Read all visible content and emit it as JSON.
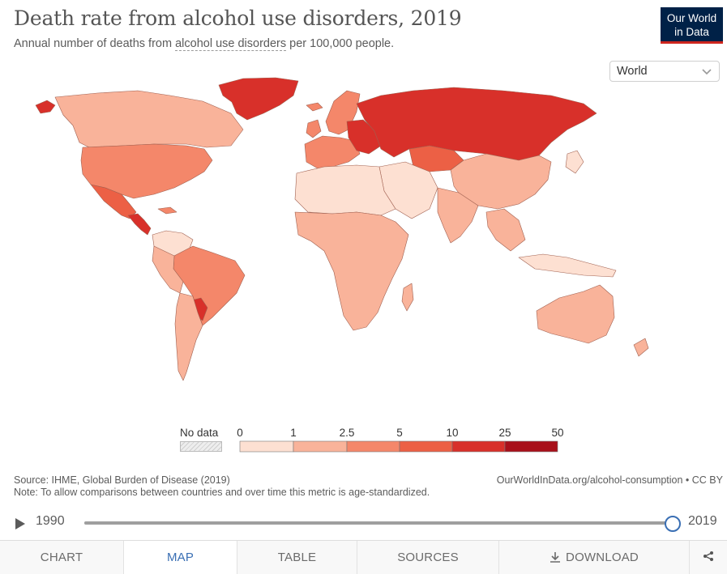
{
  "header": {
    "title": "Death rate from alcohol use disorders, 2019",
    "subtitle_prefix": "Annual number of deaths from ",
    "subtitle_link": "alcohol use disorders",
    "subtitle_suffix": " per 100,000 people."
  },
  "logo": {
    "line1": "Our World",
    "line2": "in Data"
  },
  "region_select": {
    "value": "World"
  },
  "legend": {
    "no_data_label": "No data",
    "bins": [
      {
        "from": "0",
        "to": "1",
        "color": "#fde0d2"
      },
      {
        "from": "1",
        "to": "2.5",
        "color": "#f9b39a"
      },
      {
        "from": "2.5",
        "to": "5",
        "color": "#f4876a"
      },
      {
        "from": "5",
        "to": "10",
        "color": "#ec6045"
      },
      {
        "from": "10",
        "to": "25",
        "color": "#d8302a"
      },
      {
        "from": "25",
        "to": "50",
        "color": "#a8101a"
      }
    ],
    "tick_labels": [
      "0",
      "1",
      "2.5",
      "5",
      "10",
      "25",
      "50"
    ]
  },
  "footer": {
    "source": "Source: IHME, Global Burden of Disease (2019)",
    "note": "Note: To allow comparisons between countries and over time this metric is age-standardized.",
    "url": "OurWorldInData.org/alcohol-consumption • CC BY"
  },
  "timeline": {
    "start_year": "1990",
    "end_year": "2019",
    "position_fraction": 1.0
  },
  "tabs": [
    {
      "label": "CHART",
      "active": false
    },
    {
      "label": "MAP",
      "active": true
    },
    {
      "label": "TABLE",
      "active": false
    },
    {
      "label": "SOURCES",
      "active": false
    },
    {
      "label": "DOWNLOAD",
      "active": false
    }
  ],
  "colors": {
    "bin1": "#fde0d2",
    "bin2": "#f9b39a",
    "bin3": "#f4876a",
    "bin4": "#ec6045",
    "bin5": "#d8302a",
    "bin6": "#a8101a",
    "accent": "#3a6fb4",
    "logo_bg": "#002147",
    "logo_red": "#ce261e"
  }
}
